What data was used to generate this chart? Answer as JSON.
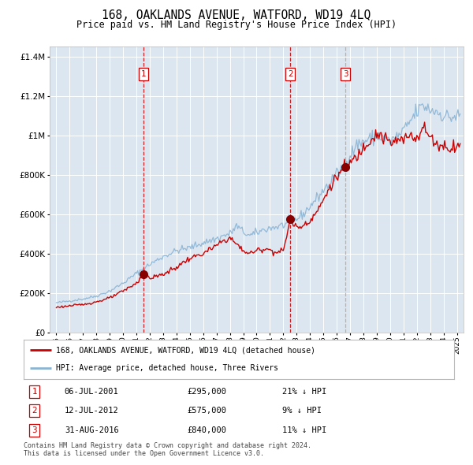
{
  "title": "168, OAKLANDS AVENUE, WATFORD, WD19 4LQ",
  "subtitle": "Price paid vs. HM Land Registry's House Price Index (HPI)",
  "legend_line1": "168, OAKLANDS AVENUE, WATFORD, WD19 4LQ (detached house)",
  "legend_line2": "HPI: Average price, detached house, Three Rivers",
  "footer_line1": "Contains HM Land Registry data © Crown copyright and database right 2024.",
  "footer_line2": "This data is licensed under the Open Government Licence v3.0.",
  "transactions": [
    {
      "num": 1,
      "date": "06-JUL-2001",
      "price": 295000,
      "pct": "21%",
      "dir": "↓"
    },
    {
      "num": 2,
      "date": "12-JUL-2012",
      "price": 575000,
      "pct": "9%",
      "dir": "↓"
    },
    {
      "num": 3,
      "date": "31-AUG-2016",
      "price": 840000,
      "pct": "11%",
      "dir": "↓"
    }
  ],
  "transaction_dates_decimal": [
    2001.516,
    2012.532,
    2016.664
  ],
  "transaction_prices": [
    295000,
    575000,
    840000
  ],
  "ylim": [
    0,
    1450000
  ],
  "xlim_start": 1994.5,
  "xlim_end": 2025.5,
  "plot_bg_color": "#dce6f1",
  "hpi_line_color": "#8ab4d4",
  "price_line_color": "#cc0000",
  "marker_color": "#880000",
  "vline_colors": [
    "#cc0000",
    "#cc0000",
    "#aaaaaa"
  ],
  "grid_color": "#ffffff",
  "hpi_keypoints": [
    [
      1995.0,
      150000
    ],
    [
      1996.0,
      160000
    ],
    [
      1997.0,
      170000
    ],
    [
      1998.0,
      185000
    ],
    [
      1999.0,
      210000
    ],
    [
      2000.0,
      250000
    ],
    [
      2001.0,
      300000
    ],
    [
      2002.0,
      345000
    ],
    [
      2003.0,
      385000
    ],
    [
      2004.0,
      415000
    ],
    [
      2005.0,
      430000
    ],
    [
      2006.0,
      455000
    ],
    [
      2007.0,
      475000
    ],
    [
      2007.5,
      490000
    ],
    [
      2008.0,
      500000
    ],
    [
      2008.5,
      540000
    ],
    [
      2009.0,
      510000
    ],
    [
      2009.5,
      490000
    ],
    [
      2010.0,
      505000
    ],
    [
      2010.5,
      520000
    ],
    [
      2011.0,
      530000
    ],
    [
      2011.5,
      535000
    ],
    [
      2012.0,
      545000
    ],
    [
      2012.5,
      555000
    ],
    [
      2013.0,
      575000
    ],
    [
      2013.5,
      600000
    ],
    [
      2014.0,
      640000
    ],
    [
      2014.5,
      680000
    ],
    [
      2015.0,
      720000
    ],
    [
      2015.5,
      760000
    ],
    [
      2016.0,
      800000
    ],
    [
      2016.5,
      840000
    ],
    [
      2017.0,
      900000
    ],
    [
      2017.5,
      950000
    ],
    [
      2018.0,
      970000
    ],
    [
      2018.5,
      980000
    ],
    [
      2019.0,
      990000
    ],
    [
      2019.5,
      985000
    ],
    [
      2020.0,
      970000
    ],
    [
      2020.5,
      990000
    ],
    [
      2021.0,
      1020000
    ],
    [
      2021.5,
      1070000
    ],
    [
      2022.0,
      1120000
    ],
    [
      2022.5,
      1150000
    ],
    [
      2023.0,
      1130000
    ],
    [
      2023.5,
      1120000
    ],
    [
      2024.0,
      1100000
    ],
    [
      2024.5,
      1090000
    ],
    [
      2025.0,
      1095000
    ],
    [
      2025.3,
      1100000
    ]
  ],
  "price_keypoints": [
    [
      1995.0,
      128000
    ],
    [
      1996.0,
      135000
    ],
    [
      1997.0,
      142000
    ],
    [
      1998.0,
      155000
    ],
    [
      1999.0,
      175000
    ],
    [
      2000.0,
      210000
    ],
    [
      2001.0,
      250000
    ],
    [
      2001.516,
      295000
    ],
    [
      2002.0,
      275000
    ],
    [
      2003.0,
      295000
    ],
    [
      2004.0,
      330000
    ],
    [
      2004.5,
      355000
    ],
    [
      2005.0,
      375000
    ],
    [
      2006.0,
      400000
    ],
    [
      2007.0,
      440000
    ],
    [
      2007.5,
      465000
    ],
    [
      2008.0,
      480000
    ],
    [
      2009.0,
      415000
    ],
    [
      2009.5,
      400000
    ],
    [
      2010.0,
      415000
    ],
    [
      2010.5,
      425000
    ],
    [
      2011.0,
      420000
    ],
    [
      2011.5,
      405000
    ],
    [
      2012.0,
      415000
    ],
    [
      2012.532,
      575000
    ],
    [
      2013.0,
      530000
    ],
    [
      2013.5,
      545000
    ],
    [
      2014.0,
      570000
    ],
    [
      2014.5,
      610000
    ],
    [
      2015.0,
      670000
    ],
    [
      2015.5,
      740000
    ],
    [
      2016.0,
      790000
    ],
    [
      2016.664,
      840000
    ],
    [
      2017.0,
      860000
    ],
    [
      2017.5,
      890000
    ],
    [
      2018.0,
      940000
    ],
    [
      2018.5,
      980000
    ],
    [
      2019.0,
      1010000
    ],
    [
      2019.5,
      990000
    ],
    [
      2020.0,
      960000
    ],
    [
      2020.5,
      970000
    ],
    [
      2021.0,
      975000
    ],
    [
      2021.5,
      1005000
    ],
    [
      2022.0,
      990000
    ],
    [
      2022.5,
      1040000
    ],
    [
      2023.0,
      990000
    ],
    [
      2023.5,
      955000
    ],
    [
      2024.0,
      945000
    ],
    [
      2024.5,
      935000
    ],
    [
      2025.0,
      950000
    ],
    [
      2025.3,
      945000
    ]
  ]
}
